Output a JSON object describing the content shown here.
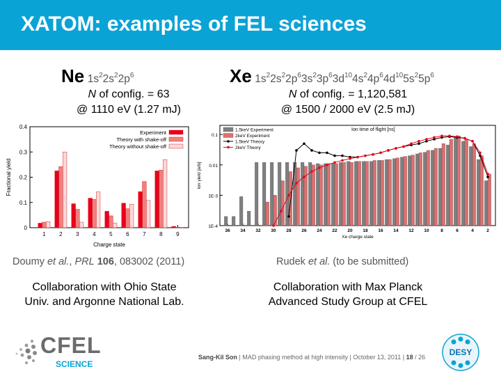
{
  "header": {
    "title": "XATOM: examples of FEL sciences"
  },
  "left": {
    "element": "Ne",
    "config_parts": [
      {
        "t": "1s"
      },
      {
        "s": "2"
      },
      {
        "t": "2s"
      },
      {
        "s": "2"
      },
      {
        "t": "2p"
      },
      {
        "s": "6"
      }
    ],
    "nconfig_label": "N",
    "nconfig_rest": " of config. = 63",
    "energy": "@ 1110 eV (1.27 mJ)",
    "citation_authors": "Doumy ",
    "citation_etal": "et al.",
    "citation_sep": ", ",
    "citation_journal": "PRL",
    "citation_volume": " 106",
    "citation_rest": ", 083002 (2011)",
    "collab_line1": "Collaboration with Ohio State",
    "collab_line2": "Univ. and Argonne National Lab."
  },
  "right": {
    "element": "Xe",
    "config_parts": [
      {
        "t": "1s"
      },
      {
        "s": "2"
      },
      {
        "t": "2s"
      },
      {
        "s": "2"
      },
      {
        "t": "2p"
      },
      {
        "s": "6"
      },
      {
        "t": "3s"
      },
      {
        "s": "2"
      },
      {
        "t": "3p"
      },
      {
        "s": "6"
      },
      {
        "t": "3d"
      },
      {
        "s": "10"
      },
      {
        "t": "4s"
      },
      {
        "s": "2"
      },
      {
        "t": "4p"
      },
      {
        "s": "6"
      },
      {
        "t": "4d"
      },
      {
        "s": "10"
      },
      {
        "t": "5s"
      },
      {
        "s": "2"
      },
      {
        "t": "5p"
      },
      {
        "s": "6"
      }
    ],
    "nconfig_label": "N",
    "nconfig_rest": " of config. = 1,120,581",
    "energy": "@ 1500 / 2000 eV (2.5 mJ)",
    "citation_authors": "Rudek ",
    "citation_etal": "et al.",
    "citation_rest": " (to be submitted)",
    "collab_line1": "Collaboration with Max Planck",
    "collab_line2": "Advanced Study Group at CFEL"
  },
  "footer": {
    "presenter": "Sang-Kil Son",
    "talk": "MAD phasing method at high intensity",
    "date": "October 13, 2011",
    "page": "18",
    "total": "/ 26",
    "sep": "|",
    "logo_main": "CFEL",
    "logo_sub": "SCIENCE",
    "desy": "DESY"
  },
  "colors": {
    "title_bar": "#0aa3d6",
    "experiment": "#e8001b",
    "theory_shakeoff": "#f08080",
    "theory_noshakeoff": "#fbd8d8",
    "xe_1500_bar": "#7f7f7f",
    "xe_2000_bar": "#e07070"
  },
  "chart_data": [
    {
      "type": "bar",
      "title": "",
      "xlabel": "Charge state",
      "ylabel": "Fractional yield",
      "categories": [
        "1",
        "2",
        "3",
        "4",
        "5",
        "6",
        "7",
        "8",
        "9"
      ],
      "ylim": [
        0,
        0.4
      ],
      "yticks": [
        "0",
        "0.1",
        "0.2",
        "0.3",
        "0.4"
      ],
      "legend_position": "top-right",
      "series": [
        {
          "name": "Experiment",
          "values": [
            0.018,
            0.225,
            0.095,
            0.117,
            0.065,
            0.097,
            0.143,
            0.225,
            0.005
          ]
        },
        {
          "name": "Theory with shake-off",
          "values": [
            0.022,
            0.242,
            0.073,
            0.112,
            0.047,
            0.075,
            0.183,
            0.228,
            0.002
          ]
        },
        {
          "name": "Theory without shake-off",
          "values": [
            0.024,
            0.3,
            0.022,
            0.142,
            0.018,
            0.093,
            0.108,
            0.27,
            0.001
          ]
        }
      ]
    },
    {
      "type": "bar",
      "title": "",
      "xlabel": "Xe charge state",
      "ylabel": "Ion yield [arb]",
      "top_axis_label": "Ion time of flight [ns]",
      "y_scale": "log",
      "ylim": [
        0.0001,
        0.2
      ],
      "yticks": [
        "0.1",
        "0.01",
        "1E-3",
        "1E-4"
      ],
      "xticks": [
        "36",
        "34",
        "32",
        "30",
        "28",
        "26",
        "24",
        "22",
        "20",
        "18",
        "16",
        "14",
        "12",
        "10",
        "8",
        "6",
        "4",
        "2"
      ],
      "legend_position": "top-left",
      "charges": [
        36,
        35,
        34,
        33,
        32,
        31,
        30,
        29,
        28,
        27,
        26,
        25,
        24,
        23,
        22,
        21,
        20,
        19,
        18,
        17,
        16,
        15,
        14,
        13,
        12,
        11,
        10,
        9,
        8,
        7,
        6,
        5,
        4,
        3,
        2
      ],
      "series": [
        {
          "name": "1.5keV Experiment",
          "values": [
            0.0002,
            0.0002,
            0.0009,
            0.0003,
            0.012,
            0.012,
            0.012,
            0.012,
            0.012,
            0.012,
            0.012,
            0.012,
            0.011,
            0.011,
            0.011,
            0.012,
            0.013,
            0.013,
            0.013,
            0.013,
            0.014,
            0.015,
            0.016,
            0.018,
            0.02,
            0.023,
            0.026,
            0.03,
            0.035,
            0.045,
            0.08,
            0.06,
            0.04,
            0.015,
            0.003
          ]
        },
        {
          "name": "2keV Experiment",
          "values": [
            null,
            null,
            null,
            null,
            null,
            0.0006,
            0.001,
            0.003,
            0.006,
            0.008,
            0.009,
            0.01,
            0.01,
            0.011,
            0.011,
            0.012,
            0.012,
            0.013,
            0.013,
            0.014,
            0.014,
            0.015,
            0.017,
            0.019,
            0.021,
            0.025,
            0.03,
            0.035,
            0.05,
            0.07,
            0.09,
            0.07,
            0.05,
            0.02,
            0.005
          ]
        },
        {
          "name": "1.5keV Theory",
          "values": [
            null,
            null,
            null,
            null,
            null,
            null,
            null,
            null,
            0.0002,
            0.03,
            0.05,
            0.03,
            0.025,
            0.025,
            0.02,
            0.02,
            0.018,
            0.018,
            0.02,
            0.022,
            0.025,
            0.03,
            0.035,
            0.04,
            0.045,
            0.05,
            0.06,
            0.07,
            0.08,
            0.085,
            0.08,
            0.075,
            0.06,
            0.02,
            0.004
          ]
        },
        {
          "name": "2keV Theory",
          "values": [
            null,
            null,
            null,
            null,
            null,
            null,
            0.0001,
            0.0003,
            0.001,
            0.0025,
            0.004,
            0.006,
            0.008,
            0.01,
            0.012,
            0.014,
            0.016,
            0.018,
            0.02,
            0.022,
            0.025,
            0.03,
            0.035,
            0.04,
            0.05,
            0.06,
            0.07,
            0.08,
            0.09,
            0.09,
            0.085,
            0.075,
            0.06,
            0.025,
            0.005
          ]
        }
      ]
    }
  ]
}
